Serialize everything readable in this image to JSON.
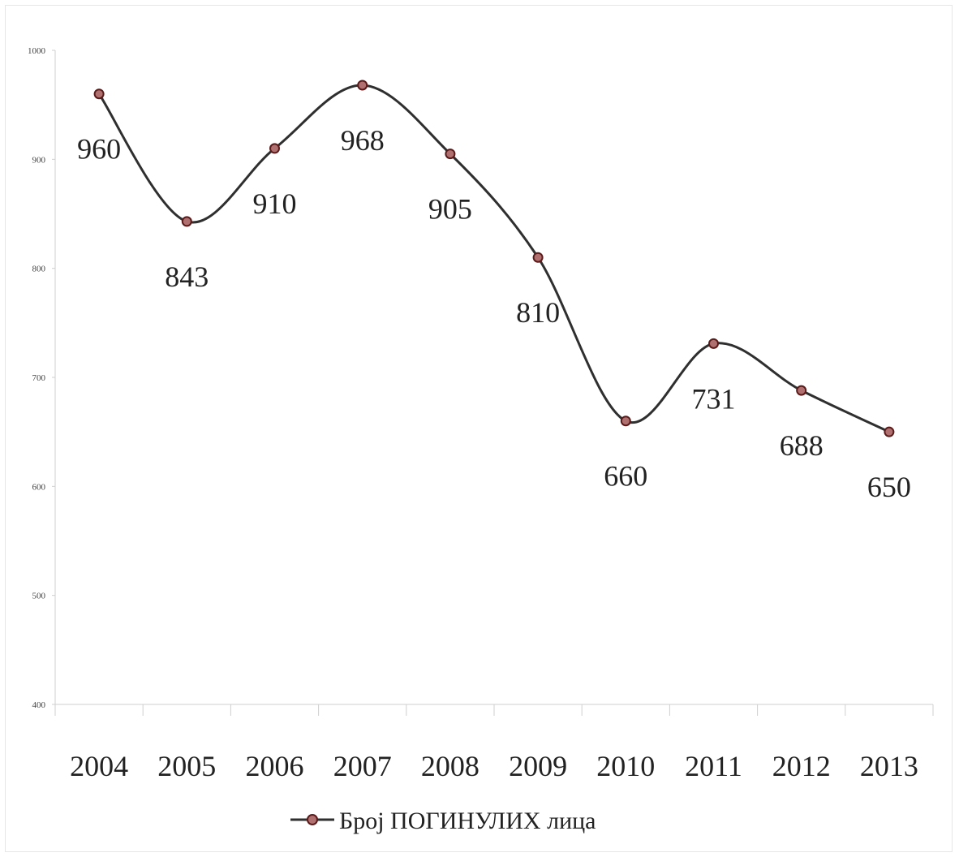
{
  "chart_data": {
    "type": "line",
    "smooth": true,
    "categories": [
      "2004",
      "2005",
      "2006",
      "2007",
      "2008",
      "2009",
      "2010",
      "2011",
      "2012",
      "2013"
    ],
    "series": [
      {
        "name": "Број ПОГИНУЛИХ лица",
        "values": [
          960,
          843,
          910,
          968,
          905,
          810,
          660,
          731,
          688,
          650
        ]
      }
    ],
    "data_labels": [
      "960",
      "843",
      "910",
      "968",
      "905",
      "810",
      "660",
      "731",
      "688",
      "650"
    ],
    "y_ticks": [
      "400",
      "500",
      "600",
      "700",
      "800",
      "900",
      "1000"
    ],
    "ylim": [
      400,
      1000
    ],
    "grid": false,
    "legend_position": "bottom",
    "title": "",
    "xlabel": "",
    "ylabel": "",
    "colors": {
      "line": "#2f2f2f",
      "marker_fill": "#b07070",
      "marker_stroke": "#5a1a1a",
      "axis": "#cfcfcf"
    }
  }
}
